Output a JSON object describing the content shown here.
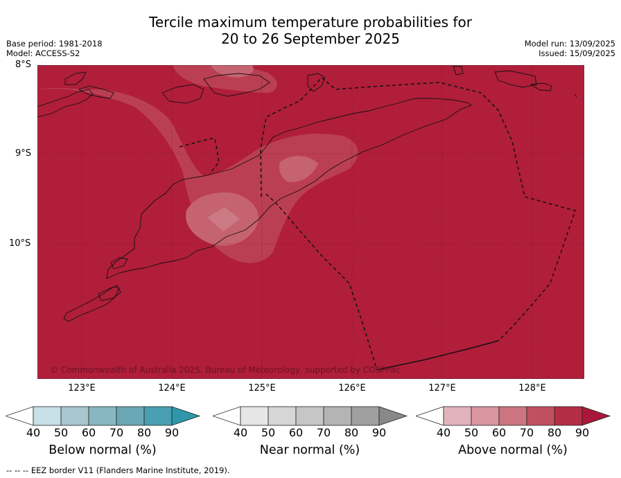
{
  "title_line1": "Tercile maximum temperature probabilities for",
  "title_line2": "20 to 26 September 2025",
  "meta_left": {
    "base_period": "Base period: 1981-2018",
    "model": "Model: ACCESS-S2"
  },
  "meta_right": {
    "model_run": "Model run: 13/09/2025",
    "issued": "Issued: 15/09/2025"
  },
  "latitude_labels": [
    "8°S",
    "9°S",
    "10°S"
  ],
  "longitude_labels": [
    "123°E",
    "124°E",
    "125°E",
    "126°E",
    "127°E",
    "128°E"
  ],
  "copyright": "© Commonwealth of Australia 2025, Bureau of Meteorology, supported by COSPPac",
  "colorbars": [
    {
      "title": "Below normal (%)",
      "ticks": [
        "40",
        "50",
        "60",
        "70",
        "80",
        "90"
      ],
      "colors": [
        "#ffffff",
        "#c8e1e8",
        "#a8c6cd",
        "#88b7c1",
        "#6aa8b6",
        "#48a0b2",
        "#2e97ab"
      ]
    },
    {
      "title": "Near normal (%)",
      "ticks": [
        "40",
        "50",
        "60",
        "70",
        "80",
        "90"
      ],
      "colors": [
        "#ffffff",
        "#e6e6e6",
        "#d6d6d6",
        "#c6c6c6",
        "#b4b4b4",
        "#a0a0a0",
        "#888888"
      ]
    },
    {
      "title": "Above normal (%)",
      "ticks": [
        "40",
        "50",
        "60",
        "70",
        "80",
        "90"
      ],
      "colors": [
        "#ffffff",
        "#e1b4bc",
        "#d996a1",
        "#cc7580",
        "#c0505f",
        "#b42e43",
        "#a8183a"
      ]
    }
  ],
  "footer": "--  --  -- EEZ border V11 (Flanders Marine Institute, 2019).",
  "map_colors": {
    "above_90": "#b01e3a",
    "above_80": "#bb3f52",
    "above_70": "#c56470",
    "above_60": "#cc7a85"
  }
}
